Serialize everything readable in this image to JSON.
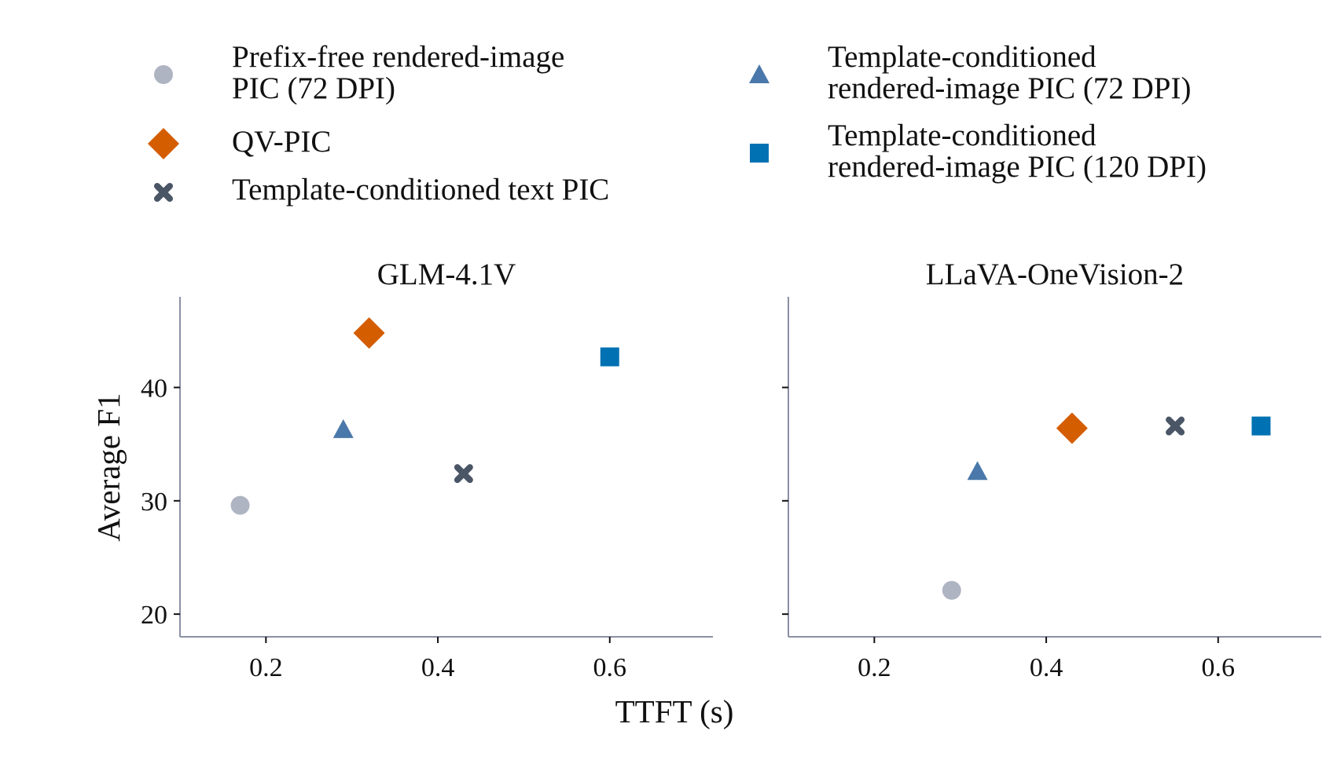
{
  "chart_data": {
    "type": "scatter",
    "xlabel": "TTFT (s)",
    "ylabel": "Average F1",
    "legend_position": "top",
    "grid": false,
    "series_styles": [
      {
        "name": "Prefix-free rendered-image PIC (72 DPI)",
        "lines": [
          "Prefix-free rendered-image",
          "PIC (72 DPI)"
        ],
        "marker": "circle",
        "color": "#aeb4c2"
      },
      {
        "name": "QV-PIC",
        "lines": [
          "QV-PIC"
        ],
        "marker": "diamond",
        "color": "#d45d00"
      },
      {
        "name": "Template-conditioned text PIC",
        "lines": [
          "Template-conditioned text PIC"
        ],
        "marker": "x",
        "color": "#4a5566"
      },
      {
        "name": "Template-conditioned rendered-image PIC (72 DPI)",
        "lines": [
          "Template-conditioned",
          "rendered-image PIC (72 DPI)"
        ],
        "marker": "triangle",
        "color": "#4a78aa"
      },
      {
        "name": "Template-conditioned rendered-image PIC (120 DPI)",
        "lines": [
          "Template-conditioned",
          "rendered-image PIC (120 DPI)"
        ],
        "marker": "square",
        "color": "#0071b2"
      }
    ],
    "panels": [
      {
        "title": "GLM-4.1V",
        "xlim": [
          0.1,
          0.72
        ],
        "ylim": [
          18,
          48
        ],
        "xticks": [
          0.2,
          0.4,
          0.6
        ],
        "yticks": [
          20,
          30,
          40
        ],
        "points": [
          {
            "series": "Prefix-free rendered-image PIC (72 DPI)",
            "x": 0.17,
            "y": 29.6
          },
          {
            "series": "QV-PIC",
            "x": 0.32,
            "y": 44.8
          },
          {
            "series": "Template-conditioned text PIC",
            "x": 0.43,
            "y": 32.4
          },
          {
            "series": "Template-conditioned rendered-image PIC (72 DPI)",
            "x": 0.29,
            "y": 36.3
          },
          {
            "series": "Template-conditioned rendered-image PIC (120 DPI)",
            "x": 0.6,
            "y": 42.7
          }
        ]
      },
      {
        "title": "LLaVA-OneVision-2",
        "xlim": [
          0.1,
          0.72
        ],
        "ylim": [
          18,
          48
        ],
        "xticks": [
          0.2,
          0.4,
          0.6
        ],
        "yticks": [
          20,
          30,
          40
        ],
        "points": [
          {
            "series": "Prefix-free rendered-image PIC (72 DPI)",
            "x": 0.29,
            "y": 22.1
          },
          {
            "series": "QV-PIC",
            "x": 0.43,
            "y": 36.4
          },
          {
            "series": "Template-conditioned text PIC",
            "x": 0.55,
            "y": 36.6
          },
          {
            "series": "Template-conditioned rendered-image PIC (72 DPI)",
            "x": 0.32,
            "y": 32.6
          },
          {
            "series": "Template-conditioned rendered-image PIC (120 DPI)",
            "x": 0.65,
            "y": 36.6
          }
        ]
      }
    ]
  }
}
